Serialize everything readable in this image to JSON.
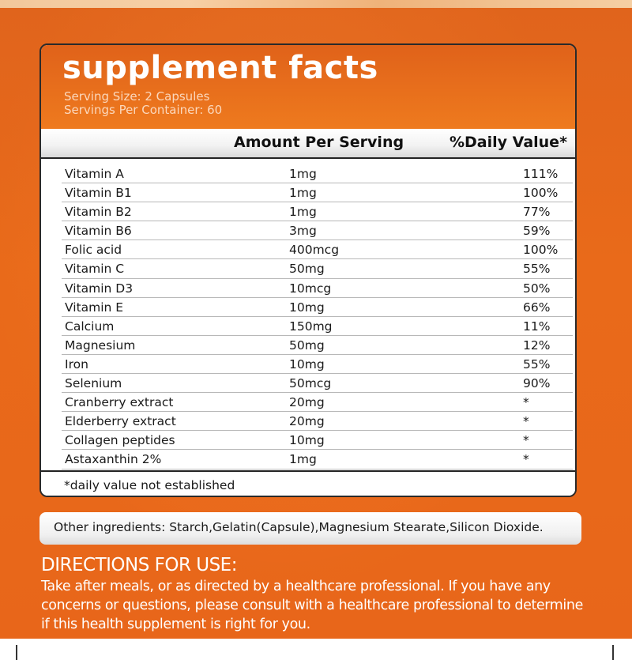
{
  "panel": {
    "title": "supplement facts",
    "serving_size": "Serving Size: 2 Capsules",
    "servings_per_container": "Servings Per Container: 60",
    "col_amount": "Amount Per Serving",
    "col_dv": "%Daily Value*",
    "rows": [
      {
        "name": "Vitamin A",
        "amount": "1mg",
        "dv": "111%"
      },
      {
        "name": "Vitamin B1",
        "amount": "1mg",
        "dv": "100%"
      },
      {
        "name": "Vitamin B2",
        "amount": "1mg",
        "dv": "77%"
      },
      {
        "name": "Vitamin B6",
        "amount": "3mg",
        "dv": "59%"
      },
      {
        "name": "Folic acid",
        "amount": "400mcg",
        "dv": "100%"
      },
      {
        "name": "Vitamin C",
        "amount": "50mg",
        "dv": "55%"
      },
      {
        "name": "Vitamin D3",
        "amount": "10mcg",
        "dv": "50%"
      },
      {
        "name": "Vitamin E",
        "amount": "10mg",
        "dv": "66%"
      },
      {
        "name": "Calcium",
        "amount": "150mg",
        "dv": "11%"
      },
      {
        "name": "Magnesium",
        "amount": "50mg",
        "dv": "12%"
      },
      {
        "name": "Iron",
        "amount": "10mg",
        "dv": "55%"
      },
      {
        "name": "Selenium",
        "amount": "50mcg",
        "dv": "90%"
      },
      {
        "name": "Cranberry extract",
        "amount": "20mg",
        "dv": "*"
      },
      {
        "name": "Elderberry extract",
        "amount": "20mg",
        "dv": "*"
      },
      {
        "name": "Collagen peptides",
        "amount": "10mg",
        "dv": "*"
      },
      {
        "name": "Astaxanthin 2%",
        "amount": "1mg",
        "dv": "*"
      }
    ],
    "footnote": "*daily value not established"
  },
  "other_ingredients": "Other ingredients: Starch,Gelatin(Capsule),Magnesium Stearate,Silicon Dioxide.",
  "directions": {
    "title": "DIRECTIONS FOR USE:",
    "text": "Take after meals, or as directed by a healthcare professional. If you have any concerns or questions, please consult with a healthcare professional to determine if this health supplement is right for  you."
  },
  "colors": {
    "background": "#e8661a",
    "header": "#e0621a",
    "text_light": "#ffffff"
  }
}
